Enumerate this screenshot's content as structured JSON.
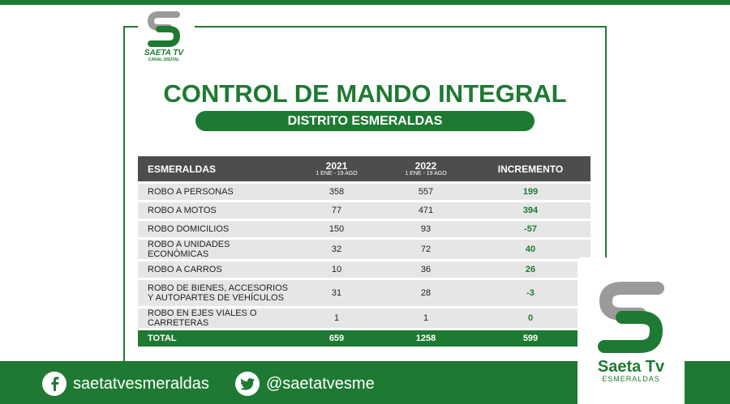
{
  "header": {
    "title": "CONTROL DE MANDO INTEGRAL",
    "subtitle": "DISTRITO ESMERALDAS"
  },
  "logo_small": {
    "brand": "SAETA TV",
    "sub": "CANAL DIGITAL"
  },
  "table": {
    "headers": {
      "name": "ESMERALDAS",
      "y2021": "2021",
      "y2021_range": "1 ENE - 19 AGO",
      "y2022": "2022",
      "y2022_range": "1 ENE - 19 AGO",
      "increment": "INCREMENTO"
    },
    "rows": [
      {
        "name": "ROBO A PERSONAS",
        "y2021": "358",
        "y2022": "557",
        "inc": "199"
      },
      {
        "name": "ROBO A MOTOS",
        "y2021": "77",
        "y2022": "471",
        "inc": "394"
      },
      {
        "name": "ROBO DOMICILIOS",
        "y2021": "150",
        "y2022": "93",
        "inc": "-57"
      },
      {
        "name": "ROBO A UNIDADES ECONÓMICAS",
        "y2021": "32",
        "y2022": "72",
        "inc": "40"
      },
      {
        "name": "ROBO A CARROS",
        "y2021": "10",
        "y2022": "36",
        "inc": "26"
      },
      {
        "name_line1": "ROBO DE BIENES, ACCESORIOS",
        "name_line2": "Y AUTOPARTES DE VEHÍCULOS",
        "y2021": "31",
        "y2022": "28",
        "inc": "-3"
      },
      {
        "name": "ROBO EN EJES VIALES O CARRETERAS",
        "y2021": "1",
        "y2022": "1",
        "inc": "0"
      }
    ],
    "total": {
      "name": "TOTAL",
      "y2021": "659",
      "y2022": "1258",
      "inc": "599"
    }
  },
  "footer": {
    "facebook": "saetatvesmeraldas",
    "twitter": "@saetatvesme"
  },
  "logo_big": {
    "brand": "Saeta Tv",
    "sub": "ESMERALDAS"
  },
  "colors": {
    "brand_green": "#1e7a32",
    "header_gray": "#4d4d4d",
    "row_gray": "#e6e6e6",
    "logo_gray": "#8a8a8a"
  }
}
